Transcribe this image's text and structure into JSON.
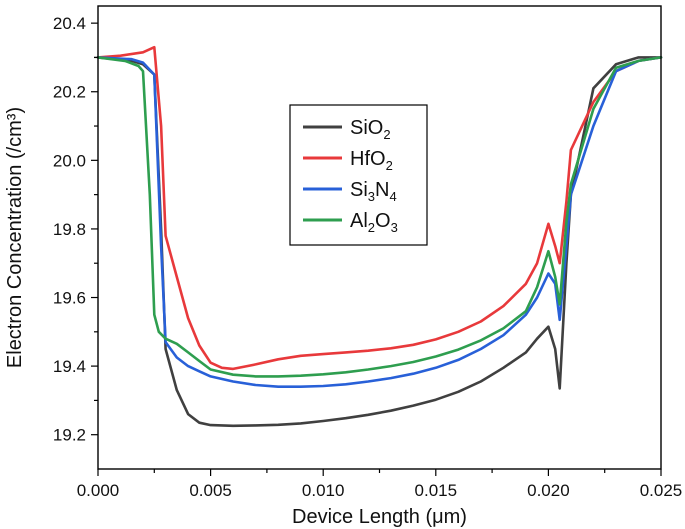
{
  "chart_data": {
    "type": "line",
    "title": "",
    "xlabel": "Device Length (μm)",
    "ylabel": "Electron Concentration (/cm³)",
    "xlim": [
      0.0,
      0.025
    ],
    "ylim": [
      19.1,
      20.45
    ],
    "x_ticks": [
      0.0,
      0.005,
      0.01,
      0.015,
      0.02,
      0.025
    ],
    "x_tick_labels": [
      "0.000",
      "0.005",
      "0.010",
      "0.015",
      "0.020",
      "0.025"
    ],
    "y_ticks": [
      19.2,
      19.4,
      19.6,
      19.8,
      20.0,
      20.2,
      20.4
    ],
    "y_tick_labels": [
      "19.2",
      "19.4",
      "19.6",
      "19.8",
      "20.0",
      "20.2",
      "20.4"
    ],
    "grid": false,
    "legend_position": "center",
    "series": [
      {
        "name": "SiO2",
        "name_base": "SiO",
        "name_sub": "2",
        "color": "#404040",
        "x": [
          0.0,
          0.0015,
          0.002,
          0.0025,
          0.0028,
          0.003,
          0.0035,
          0.004,
          0.0045,
          0.005,
          0.006,
          0.007,
          0.008,
          0.009,
          0.01,
          0.011,
          0.012,
          0.013,
          0.014,
          0.015,
          0.016,
          0.017,
          0.018,
          0.019,
          0.0195,
          0.02,
          0.0203,
          0.0205,
          0.0208,
          0.021,
          0.022,
          0.023,
          0.024,
          0.025
        ],
        "y": [
          20.3,
          20.29,
          20.28,
          20.25,
          19.8,
          19.45,
          19.33,
          19.26,
          19.235,
          19.228,
          19.226,
          19.227,
          19.229,
          19.233,
          19.24,
          19.248,
          19.258,
          19.27,
          19.285,
          19.302,
          19.325,
          19.355,
          19.395,
          19.44,
          19.48,
          19.515,
          19.45,
          19.335,
          19.7,
          19.9,
          20.21,
          20.28,
          20.3,
          20.3
        ]
      },
      {
        "name": "HfO2",
        "name_base": "HfO",
        "name_sub": "2",
        "color": "#e8393b",
        "x": [
          0.0,
          0.001,
          0.002,
          0.0025,
          0.0028,
          0.003,
          0.0035,
          0.004,
          0.0045,
          0.005,
          0.0055,
          0.006,
          0.007,
          0.008,
          0.009,
          0.01,
          0.011,
          0.012,
          0.013,
          0.014,
          0.015,
          0.016,
          0.017,
          0.018,
          0.019,
          0.0195,
          0.02,
          0.0203,
          0.0205,
          0.0208,
          0.021,
          0.022,
          0.023,
          0.024,
          0.025
        ],
        "y": [
          20.3,
          20.305,
          20.315,
          20.33,
          20.1,
          19.78,
          19.66,
          19.54,
          19.46,
          19.41,
          19.395,
          19.392,
          19.405,
          19.42,
          19.43,
          19.435,
          19.44,
          19.445,
          19.452,
          19.462,
          19.478,
          19.5,
          19.53,
          19.575,
          19.64,
          19.7,
          19.815,
          19.75,
          19.7,
          19.88,
          20.03,
          20.17,
          20.26,
          20.29,
          20.3
        ]
      },
      {
        "name": "Si3N4",
        "name_base": "Si",
        "name_sub": "3",
        "name_mid": "N",
        "name_sub2": "4",
        "color": "#2860d8",
        "x": [
          0.0,
          0.0015,
          0.002,
          0.0025,
          0.0028,
          0.003,
          0.0035,
          0.004,
          0.0045,
          0.005,
          0.006,
          0.007,
          0.008,
          0.009,
          0.01,
          0.011,
          0.012,
          0.013,
          0.014,
          0.015,
          0.016,
          0.017,
          0.018,
          0.019,
          0.0195,
          0.02,
          0.0203,
          0.0205,
          0.0208,
          0.021,
          0.022,
          0.023,
          0.024,
          0.025
        ],
        "y": [
          20.3,
          20.295,
          20.285,
          20.25,
          19.75,
          19.47,
          19.425,
          19.4,
          19.385,
          19.37,
          19.355,
          19.345,
          19.34,
          19.34,
          19.342,
          19.347,
          19.355,
          19.365,
          19.378,
          19.395,
          19.418,
          19.45,
          19.49,
          19.55,
          19.6,
          19.67,
          19.64,
          19.535,
          19.75,
          19.9,
          20.1,
          20.26,
          20.29,
          20.3
        ]
      },
      {
        "name": "Al2O3",
        "name_base": "Al",
        "name_sub": "2",
        "name_mid": "O",
        "name_sub2": "3",
        "color": "#2e9e4f",
        "x": [
          0.0,
          0.0012,
          0.0018,
          0.002,
          0.0023,
          0.0025,
          0.0027,
          0.003,
          0.0035,
          0.004,
          0.0045,
          0.005,
          0.006,
          0.007,
          0.008,
          0.009,
          0.01,
          0.011,
          0.012,
          0.013,
          0.014,
          0.015,
          0.016,
          0.017,
          0.018,
          0.019,
          0.0195,
          0.02,
          0.0203,
          0.0205,
          0.0208,
          0.021,
          0.022,
          0.023,
          0.024,
          0.025
        ],
        "y": [
          20.3,
          20.29,
          20.275,
          20.26,
          19.9,
          19.55,
          19.5,
          19.48,
          19.465,
          19.44,
          19.415,
          19.39,
          19.375,
          19.37,
          19.37,
          19.372,
          19.376,
          19.382,
          19.39,
          19.4,
          19.412,
          19.428,
          19.448,
          19.475,
          19.51,
          19.56,
          19.63,
          19.735,
          19.66,
          19.58,
          19.82,
          19.93,
          20.15,
          20.27,
          20.29,
          20.3
        ]
      }
    ]
  }
}
